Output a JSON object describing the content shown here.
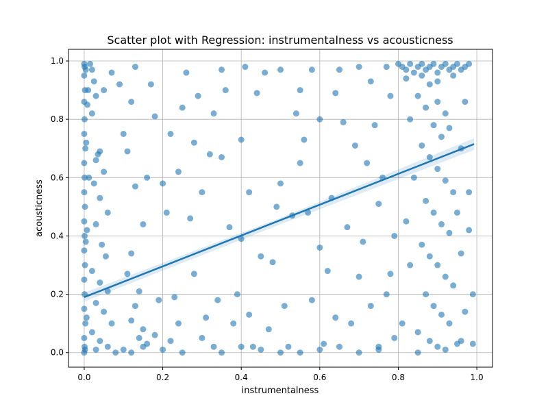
{
  "chart_data": {
    "type": "scatter",
    "title": "Scatter plot with Regression: instrumentalness vs acousticness",
    "xlabel": "instrumentalness",
    "ylabel": "acousticness",
    "xlim": [
      -0.04,
      1.04
    ],
    "ylim": [
      -0.05,
      1.04
    ],
    "xticks": [
      0.0,
      0.2,
      0.4,
      0.6,
      0.8,
      1.0
    ],
    "yticks": [
      0.0,
      0.2,
      0.4,
      0.6,
      0.8,
      1.0
    ],
    "xtick_labels": [
      "0.0",
      "0.2",
      "0.4",
      "0.6",
      "0.8",
      "1.0"
    ],
    "ytick_labels": [
      "0.0",
      "0.2",
      "0.4",
      "0.6",
      "0.8",
      "1.0"
    ],
    "grid": true,
    "point_color": "#1f77b4",
    "point_alpha": 0.6,
    "regression": {
      "x": [
        0.0,
        0.993
      ],
      "y": [
        0.19,
        0.715
      ],
      "ci": [
        [
          0.0,
          0.175,
          0.205
        ],
        [
          0.5,
          0.44,
          0.462
        ],
        [
          0.993,
          0.695,
          0.735
        ]
      ]
    },
    "points": [
      [
        0.0,
        0.99
      ],
      [
        0.001,
        0.98
      ],
      [
        0.0,
        0.95
      ],
      [
        0.002,
        0.9
      ],
      [
        0.0,
        0.86
      ],
      [
        0.001,
        0.8
      ],
      [
        0.0,
        0.75
      ],
      [
        0.003,
        0.7
      ],
      [
        0.0,
        0.65
      ],
      [
        0.001,
        0.6
      ],
      [
        0.0,
        0.55
      ],
      [
        0.002,
        0.5
      ],
      [
        0.0,
        0.45
      ],
      [
        0.001,
        0.4
      ],
      [
        0.0,
        0.35
      ],
      [
        0.002,
        0.3
      ],
      [
        0.0,
        0.25
      ],
      [
        0.001,
        0.2
      ],
      [
        0.0,
        0.15
      ],
      [
        0.003,
        0.1
      ],
      [
        0.0,
        0.05
      ],
      [
        0.001,
        0.02
      ],
      [
        0.0,
        0.0
      ],
      [
        0.002,
        0.01
      ],
      [
        0.004,
        0.97
      ],
      [
        0.005,
        0.72
      ],
      [
        0.004,
        0.38
      ],
      [
        0.006,
        0.12
      ],
      [
        0.008,
        0.85
      ],
      [
        0.007,
        0.42
      ],
      [
        0.01,
        0.9
      ],
      [
        0.012,
        0.6
      ],
      [
        0.015,
        0.99
      ],
      [
        0.02,
        0.97
      ],
      [
        0.025,
        0.93
      ],
      [
        0.03,
        0.88
      ],
      [
        0.02,
        0.82
      ],
      [
        0.035,
        0.68
      ],
      [
        0.04,
        0.69
      ],
      [
        0.03,
        0.66
      ],
      [
        0.05,
        0.62
      ],
      [
        0.025,
        0.58
      ],
      [
        0.04,
        0.53
      ],
      [
        0.06,
        0.48
      ],
      [
        0.03,
        0.44
      ],
      [
        0.045,
        0.37
      ],
      [
        0.055,
        0.33
      ],
      [
        0.02,
        0.28
      ],
      [
        0.04,
        0.24
      ],
      [
        0.06,
        0.21
      ],
      [
        0.03,
        0.17
      ],
      [
        0.05,
        0.14
      ],
      [
        0.07,
        0.1
      ],
      [
        0.02,
        0.07
      ],
      [
        0.04,
        0.04
      ],
      [
        0.06,
        0.02
      ],
      [
        0.03,
        0.01
      ],
      [
        0.08,
        0.0
      ],
      [
        0.1,
        0.01
      ],
      [
        0.12,
        0.0
      ],
      [
        0.05,
        0.9
      ],
      [
        0.07,
        0.96
      ],
      [
        0.09,
        0.92
      ],
      [
        0.1,
        0.75
      ],
      [
        0.11,
        0.69
      ],
      [
        0.13,
        0.57
      ],
      [
        0.12,
        0.34
      ],
      [
        0.11,
        0.27
      ],
      [
        0.14,
        0.21
      ],
      [
        0.13,
        0.16
      ],
      [
        0.12,
        0.11
      ],
      [
        0.15,
        0.08
      ],
      [
        0.14,
        0.05
      ],
      [
        0.16,
        0.03
      ],
      [
        0.13,
        0.98
      ],
      [
        0.12,
        0.86
      ],
      [
        0.15,
        0.44
      ],
      [
        0.17,
        0.92
      ],
      [
        0.18,
        0.81
      ],
      [
        0.16,
        0.6
      ],
      [
        0.19,
        0.18
      ],
      [
        0.18,
        0.06
      ],
      [
        0.2,
        0.58
      ],
      [
        0.21,
        0.48
      ],
      [
        0.22,
        0.75
      ],
      [
        0.23,
        0.19
      ],
      [
        0.22,
        0.04
      ],
      [
        0.24,
        0.62
      ],
      [
        0.25,
        0.84
      ],
      [
        0.24,
        0.1
      ],
      [
        0.26,
        0.96
      ],
      [
        0.27,
        0.46
      ],
      [
        0.28,
        0.72
      ],
      [
        0.29,
        0.88
      ],
      [
        0.28,
        0.27
      ],
      [
        0.3,
        0.05
      ],
      [
        0.3,
        0.55
      ],
      [
        0.31,
        0.12
      ],
      [
        0.32,
        0.68
      ],
      [
        0.33,
        0.82
      ],
      [
        0.34,
        0.18
      ],
      [
        0.33,
        0.02
      ],
      [
        0.35,
        0.97
      ],
      [
        0.36,
        0.9
      ],
      [
        0.35,
        0.67
      ],
      [
        0.37,
        0.43
      ],
      [
        0.38,
        0.1
      ],
      [
        0.39,
        0.2
      ],
      [
        0.4,
        0.39
      ],
      [
        0.4,
        0.73
      ],
      [
        0.41,
        0.98
      ],
      [
        0.42,
        0.55
      ],
      [
        0.42,
        0.13
      ],
      [
        0.43,
        0.02
      ],
      [
        0.44,
        0.89
      ],
      [
        0.45,
        0.33
      ],
      [
        0.46,
        0.96
      ],
      [
        0.47,
        0.08
      ],
      [
        0.48,
        0.31
      ],
      [
        0.49,
        0.5
      ],
      [
        0.5,
        0.58
      ],
      [
        0.5,
        0.97
      ],
      [
        0.51,
        0.16
      ],
      [
        0.52,
        0.02
      ],
      [
        0.53,
        0.47
      ],
      [
        0.54,
        0.82
      ],
      [
        0.55,
        0.9
      ],
      [
        0.55,
        0.65
      ],
      [
        0.56,
        0.73
      ],
      [
        0.57,
        0.48
      ],
      [
        0.58,
        0.97
      ],
      [
        0.58,
        0.18
      ],
      [
        0.6,
        0.36
      ],
      [
        0.6,
        0.8
      ],
      [
        0.61,
        0.03
      ],
      [
        0.62,
        0.28
      ],
      [
        0.63,
        0.53
      ],
      [
        0.64,
        0.89
      ],
      [
        0.64,
        0.12
      ],
      [
        0.65,
        0.97
      ],
      [
        0.66,
        0.79
      ],
      [
        0.67,
        0.43
      ],
      [
        0.68,
        0.1
      ],
      [
        0.69,
        0.71
      ],
      [
        0.7,
        0.98
      ],
      [
        0.7,
        0.26
      ],
      [
        0.71,
        0.38
      ],
      [
        0.72,
        0.65
      ],
      [
        0.73,
        0.93
      ],
      [
        0.73,
        0.16
      ],
      [
        0.74,
        0.78
      ],
      [
        0.75,
        0.51
      ],
      [
        0.75,
        0.02
      ],
      [
        0.76,
        0.6
      ],
      [
        0.77,
        0.2
      ],
      [
        0.77,
        0.98
      ],
      [
        0.78,
        0.88
      ],
      [
        0.78,
        0.27
      ],
      [
        0.79,
        0.05
      ],
      [
        0.79,
        0.4
      ],
      [
        0.8,
        0.99
      ],
      [
        0.81,
        0.98
      ],
      [
        0.82,
        0.97
      ],
      [
        0.83,
        0.99
      ],
      [
        0.84,
        0.96
      ],
      [
        0.85,
        0.98
      ],
      [
        0.86,
        0.99
      ],
      [
        0.87,
        0.97
      ],
      [
        0.88,
        0.98
      ],
      [
        0.89,
        0.99
      ],
      [
        0.9,
        0.96
      ],
      [
        0.91,
        0.98
      ],
      [
        0.92,
        0.99
      ],
      [
        0.93,
        0.97
      ],
      [
        0.94,
        0.98
      ],
      [
        0.95,
        0.99
      ],
      [
        0.96,
        0.97
      ],
      [
        0.97,
        0.98
      ],
      [
        0.98,
        0.99
      ],
      [
        0.82,
        0.94
      ],
      [
        0.86,
        0.95
      ],
      [
        0.9,
        0.93
      ],
      [
        0.94,
        0.95
      ],
      [
        0.88,
        0.92
      ],
      [
        0.85,
        0.88
      ],
      [
        0.87,
        0.84
      ],
      [
        0.9,
        0.86
      ],
      [
        0.92,
        0.82
      ],
      [
        0.89,
        0.78
      ],
      [
        0.91,
        0.74
      ],
      [
        0.93,
        0.77
      ],
      [
        0.86,
        0.71
      ],
      [
        0.88,
        0.67
      ],
      [
        0.9,
        0.63
      ],
      [
        0.92,
        0.59
      ],
      [
        0.94,
        0.55
      ],
      [
        0.87,
        0.52
      ],
      [
        0.89,
        0.48
      ],
      [
        0.91,
        0.44
      ],
      [
        0.93,
        0.41
      ],
      [
        0.86,
        0.37
      ],
      [
        0.88,
        0.33
      ],
      [
        0.9,
        0.3
      ],
      [
        0.92,
        0.26
      ],
      [
        0.94,
        0.23
      ],
      [
        0.87,
        0.2
      ],
      [
        0.89,
        0.16
      ],
      [
        0.91,
        0.13
      ],
      [
        0.93,
        0.1
      ],
      [
        0.85,
        0.07
      ],
      [
        0.88,
        0.04
      ],
      [
        0.9,
        0.02
      ],
      [
        0.92,
        0.01
      ],
      [
        0.95,
        0.03
      ],
      [
        0.82,
        0.45
      ],
      [
        0.83,
        0.3
      ],
      [
        0.81,
        0.1
      ],
      [
        0.84,
        0.6
      ],
      [
        0.83,
        0.8
      ],
      [
        0.97,
        0.86
      ],
      [
        0.98,
        0.55
      ],
      [
        0.96,
        0.34
      ],
      [
        0.97,
        0.14
      ],
      [
        0.99,
        0.2
      ],
      [
        0.98,
        0.42
      ],
      [
        0.96,
        0.7
      ],
      [
        0.99,
        0.03
      ],
      [
        0.95,
        0.48
      ],
      [
        0.96,
        0.04
      ],
      [
        0.5,
        0.0
      ],
      [
        0.6,
        0.01
      ],
      [
        0.7,
        0.0
      ],
      [
        0.2,
        0.01
      ],
      [
        0.35,
        0.0
      ],
      [
        0.45,
        0.01
      ],
      [
        0.55,
        0.0
      ],
      [
        0.65,
        0.02
      ],
      [
        0.75,
        0.01
      ],
      [
        0.85,
        0.0
      ],
      [
        0.15,
        0.02
      ],
      [
        0.25,
        0.0
      ],
      [
        0.4,
        0.02
      ]
    ]
  }
}
